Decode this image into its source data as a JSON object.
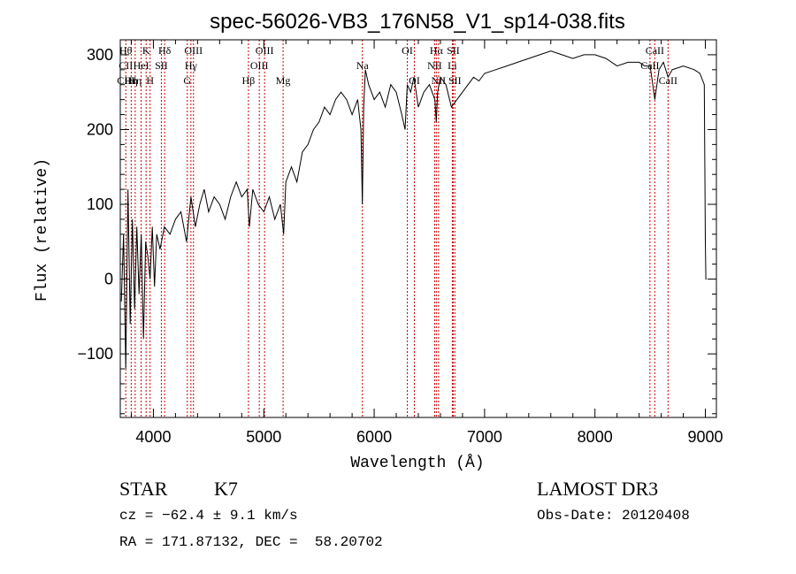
{
  "chart_data": {
    "type": "line",
    "title": "spec-56026-VB3_176N58_V1_sp14-038.fits",
    "xlabel": "Wavelength (Å)",
    "ylabel": "Flux (relative)",
    "xlim": [
      3700,
      9100
    ],
    "ylim": [
      -185,
      320
    ],
    "x_ticks": [
      4000,
      5000,
      6000,
      7000,
      8000,
      9000
    ],
    "x_tick_labels": [
      "4000",
      "5000",
      "6000",
      "7000",
      "8000",
      "9000"
    ],
    "y_ticks": [
      -100,
      0,
      100,
      200,
      300
    ],
    "y_tick_labels": [
      "−100",
      "0",
      "100",
      "200",
      "300"
    ],
    "grid": false,
    "line_color": "#000000",
    "marker_color": "#cc0000",
    "series": [
      {
        "name": "flux",
        "x": [
          3710,
          3730,
          3750,
          3770,
          3790,
          3810,
          3830,
          3850,
          3870,
          3890,
          3910,
          3930,
          3950,
          3970,
          3990,
          4010,
          4030,
          4060,
          4100,
          4150,
          4200,
          4250,
          4300,
          4340,
          4380,
          4420,
          4460,
          4500,
          4550,
          4600,
          4650,
          4700,
          4750,
          4800,
          4850,
          4870,
          4900,
          4950,
          5000,
          5050,
          5100,
          5150,
          5180,
          5200,
          5250,
          5300,
          5350,
          5400,
          5450,
          5500,
          5550,
          5600,
          5650,
          5700,
          5750,
          5800,
          5850,
          5880,
          5893,
          5905,
          5920,
          5950,
          6000,
          6050,
          6100,
          6150,
          6200,
          6250,
          6280,
          6300,
          6330,
          6360,
          6400,
          6450,
          6500,
          6550,
          6563,
          6575,
          6600,
          6650,
          6700,
          6750,
          6800,
          6850,
          6900,
          6950,
          7000,
          7100,
          7200,
          7300,
          7400,
          7500,
          7600,
          7700,
          7800,
          7900,
          8000,
          8100,
          8200,
          8300,
          8400,
          8450,
          8500,
          8542,
          8580,
          8620,
          8662,
          8700,
          8800,
          8900,
          8950,
          8990,
          9000,
          9005,
          9010
        ],
        "values": [
          -30,
          60,
          -120,
          120,
          -60,
          80,
          -40,
          70,
          -20,
          60,
          -80,
          50,
          30,
          0,
          70,
          -10,
          60,
          40,
          70,
          60,
          80,
          90,
          50,
          110,
          70,
          100,
          120,
          90,
          110,
          100,
          80,
          110,
          130,
          110,
          120,
          70,
          120,
          100,
          90,
          110,
          80,
          100,
          60,
          130,
          150,
          130,
          170,
          180,
          200,
          210,
          230,
          220,
          240,
          250,
          240,
          220,
          240,
          200,
          100,
          230,
          280,
          260,
          240,
          250,
          230,
          260,
          250,
          220,
          200,
          260,
          250,
          270,
          230,
          250,
          260,
          240,
          210,
          250,
          270,
          260,
          230,
          240,
          250,
          260,
          270,
          265,
          275,
          280,
          285,
          290,
          295,
          300,
          305,
          300,
          295,
          300,
          300,
          295,
          285,
          290,
          290,
          285,
          285,
          240,
          280,
          290,
          270,
          280,
          285,
          280,
          275,
          260,
          50,
          0,
          0
        ]
      }
    ],
    "lines": [
      {
        "x": 3750,
        "labels": [
          "Hθ",
          "CII",
          "CIII"
        ],
        "row_labels": [
          0,
          1,
          2
        ]
      },
      {
        "x": 3799,
        "labels": [
          "Hη"
        ],
        "row_labels": [
          2
        ]
      },
      {
        "x": 3835,
        "labels": [
          "Hη"
        ],
        "row_labels": [
          2
        ]
      },
      {
        "x": 3889,
        "labels": [
          "HeI"
        ],
        "row_labels": [
          1
        ]
      },
      {
        "x": 3934,
        "labels": [
          "K"
        ],
        "row_labels": [
          0
        ]
      },
      {
        "x": 3970,
        "labels": [
          "H"
        ],
        "row_labels": [
          2
        ]
      },
      {
        "x": 4072,
        "labels": [
          "SII"
        ],
        "row_labels": [
          1
        ]
      },
      {
        "x": 4102,
        "labels": [
          "Hδ"
        ],
        "row_labels": [
          0
        ]
      },
      {
        "x": 4307,
        "labels": [
          "G"
        ],
        "row_labels": [
          2
        ]
      },
      {
        "x": 4340,
        "labels": [
          "Hγ"
        ],
        "row_labels": [
          1
        ]
      },
      {
        "x": 4363,
        "labels": [
          "OIII"
        ],
        "row_labels": [
          0
        ]
      },
      {
        "x": 4861,
        "labels": [
          "Hβ"
        ],
        "row_labels": [
          2
        ]
      },
      {
        "x": 4959,
        "labels": [
          "OIII"
        ],
        "row_labels": [
          1
        ]
      },
      {
        "x": 5007,
        "labels": [
          "OIII"
        ],
        "row_labels": [
          0
        ]
      },
      {
        "x": 5175,
        "labels": [
          "Mg"
        ],
        "row_labels": [
          2
        ]
      },
      {
        "x": 5893,
        "labels": [
          "Na"
        ],
        "row_labels": [
          1
        ]
      },
      {
        "x": 6300,
        "labels": [
          "OI"
        ],
        "row_labels": [
          0
        ]
      },
      {
        "x": 6364,
        "labels": [
          "OI"
        ],
        "row_labels": [
          2
        ]
      },
      {
        "x": 6548,
        "labels": [
          "NII"
        ],
        "row_labels": [
          1
        ]
      },
      {
        "x": 6563,
        "labels": [
          "Hα"
        ],
        "row_labels": [
          0
        ]
      },
      {
        "x": 6583,
        "labels": [
          "NII"
        ],
        "row_labels": [
          2
        ]
      },
      {
        "x": 6708,
        "labels": [
          "Li"
        ],
        "row_labels": [
          1
        ]
      },
      {
        "x": 6716,
        "labels": [
          "SII"
        ],
        "row_labels": [
          0
        ]
      },
      {
        "x": 6731,
        "labels": [
          "SII"
        ],
        "row_labels": [
          2
        ]
      },
      {
        "x": 8498,
        "labels": [
          "CaII"
        ],
        "row_labels": [
          1
        ]
      },
      {
        "x": 8542,
        "labels": [
          "CaII"
        ],
        "row_labels": [
          0
        ]
      },
      {
        "x": 8662,
        "labels": [
          "CaII"
        ],
        "row_labels": [
          2
        ]
      }
    ]
  },
  "info": {
    "object_class": "STAR",
    "subclass": "K7",
    "survey": "LAMOST DR3",
    "cz": "cz = −62.4 ± 9.1 km/s",
    "obs_date": "Obs-Date: 20120408",
    "coords": "RA = 171.87132, DEC =  58.20702"
  }
}
